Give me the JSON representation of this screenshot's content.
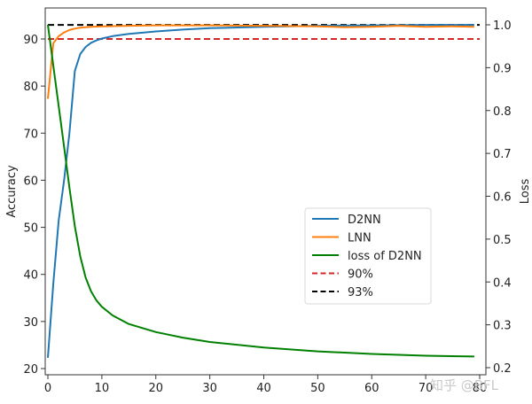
{
  "chart_data": {
    "type": "line",
    "title": "",
    "xlabel": "",
    "ylabel": "Accuracy",
    "ylabel_right": "Loss",
    "xlim": [
      0,
      80
    ],
    "ylim": [
      19,
      96
    ],
    "ylim_right": [
      0.2,
      1.03
    ],
    "xticks": [
      0,
      10,
      20,
      30,
      40,
      50,
      60,
      70,
      80
    ],
    "yticks": [
      20,
      30,
      40,
      50,
      60,
      70,
      80,
      90
    ],
    "yticks_right": [
      0.2,
      0.3,
      0.4,
      0.5,
      0.6,
      0.7,
      0.8,
      0.9,
      1.0
    ],
    "grid": false,
    "legend_position": "center right",
    "series": [
      {
        "name": "D2NN",
        "axis": "left",
        "color": "#1f77b4",
        "style": "solid",
        "x": [
          0,
          1,
          2,
          3,
          4,
          5,
          6,
          7,
          8,
          9,
          10,
          12,
          15,
          20,
          25,
          30,
          40,
          50,
          60,
          70,
          79
        ],
        "y": [
          22.3,
          38,
          51.5,
          60,
          70,
          83.2,
          86.8,
          88.3,
          89.2,
          89.7,
          90.1,
          90.6,
          91.1,
          91.6,
          92.0,
          92.3,
          92.6,
          92.8,
          92.9,
          93.0,
          93.0
        ]
      },
      {
        "name": "LNN",
        "axis": "left",
        "color": "#ff7f0e",
        "style": "solid",
        "x": [
          0,
          1,
          2,
          3,
          4,
          5,
          6,
          8,
          10,
          15,
          20,
          30,
          40,
          50,
          55,
          60,
          65,
          70,
          75,
          79
        ],
        "y": [
          77.3,
          89.1,
          90.6,
          91.4,
          91.9,
          92.2,
          92.4,
          92.6,
          92.7,
          92.8,
          92.9,
          92.9,
          92.8,
          92.7,
          92.5,
          92.6,
          92.8,
          92.6,
          92.7,
          92.6
        ]
      },
      {
        "name": "loss of D2NN",
        "axis": "right",
        "color": "#008000",
        "style": "solid",
        "x": [
          0,
          1,
          2,
          3,
          4,
          5,
          6,
          7,
          8,
          9,
          10,
          12,
          15,
          20,
          25,
          30,
          40,
          50,
          60,
          70,
          79
        ],
        "y": [
          1.0,
          0.905,
          0.81,
          0.715,
          0.62,
          0.53,
          0.46,
          0.41,
          0.378,
          0.357,
          0.342,
          0.322,
          0.302,
          0.283,
          0.27,
          0.26,
          0.247,
          0.238,
          0.232,
          0.228,
          0.226
        ]
      },
      {
        "name": "90%",
        "axis": "left",
        "color": "#d62728",
        "style": "dashed",
        "x": [
          0,
          80
        ],
        "y": [
          90,
          90
        ]
      },
      {
        "name": "93%",
        "axis": "left",
        "color": "#000000",
        "style": "dashed",
        "x": [
          0,
          80
        ],
        "y": [
          93,
          93
        ]
      }
    ]
  },
  "legend": {
    "items": [
      {
        "label": "D2NN",
        "color": "#1f77b4",
        "dashed": false
      },
      {
        "label": "LNN",
        "color": "#ff7f0e",
        "dashed": false
      },
      {
        "label": "loss of D2NN",
        "color": "#008000",
        "dashed": false
      },
      {
        "label": "90%",
        "color": "#d62728",
        "dashed": true
      },
      {
        "label": "93%",
        "color": "#000000",
        "dashed": true
      }
    ]
  },
  "watermark": "知乎 @BFL"
}
